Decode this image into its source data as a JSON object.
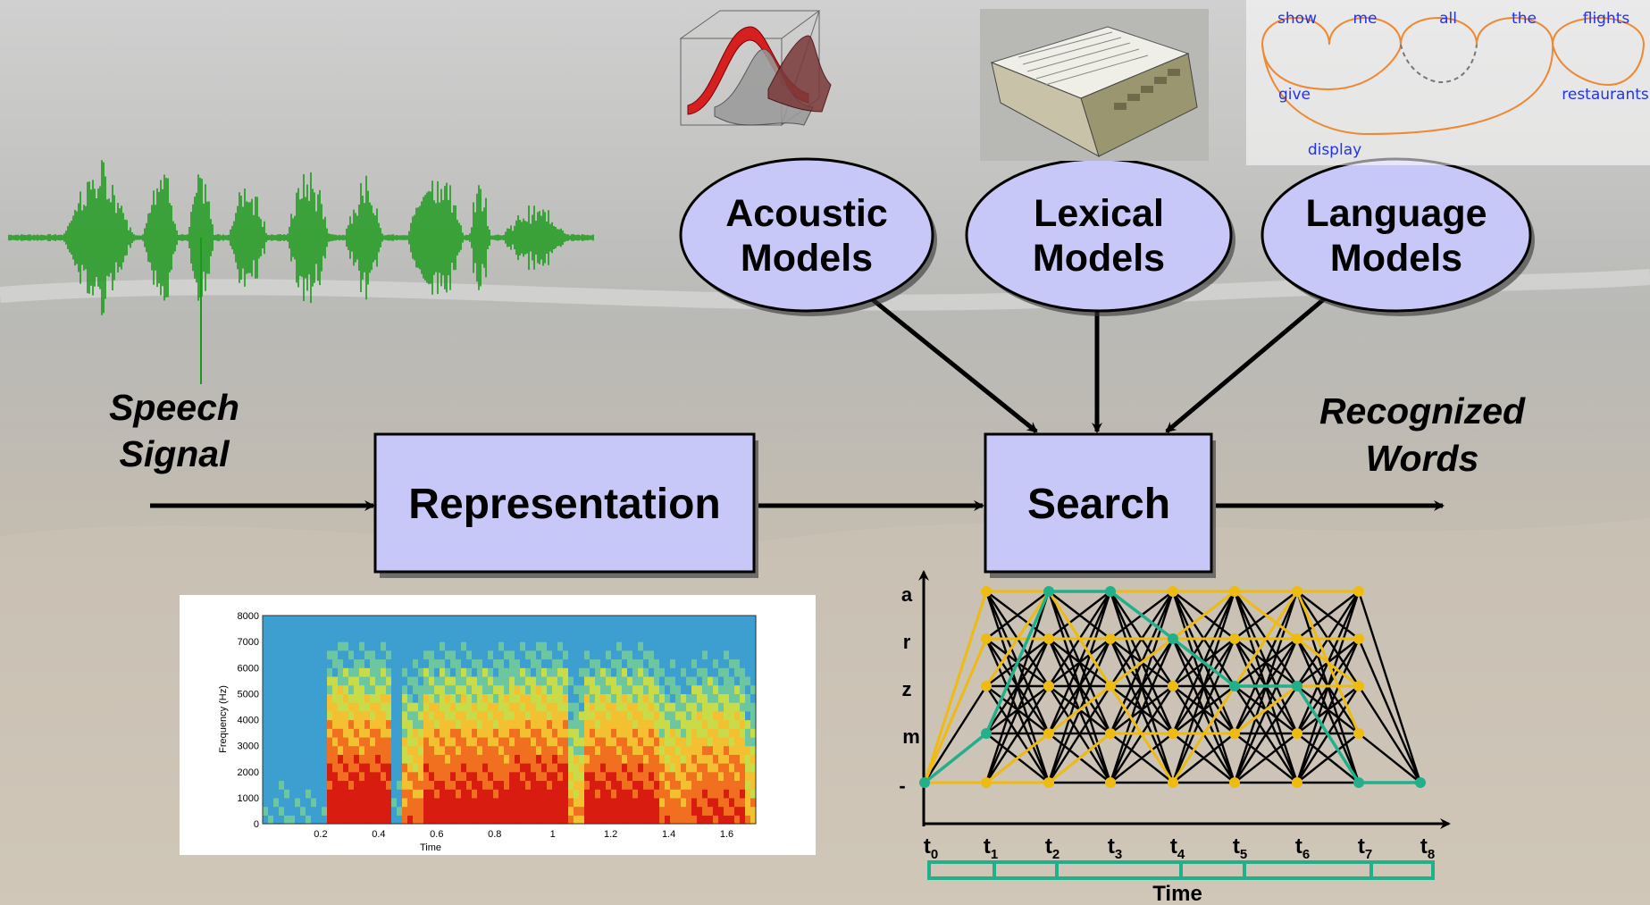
{
  "speech_label": [
    "Speech",
    "Signal"
  ],
  "recognized_label": [
    "Recognized",
    "Words"
  ],
  "representation_label": "Representation",
  "search_label": "Search",
  "models": [
    {
      "line1": "Acoustic",
      "line2": "Models"
    },
    {
      "line1": "Lexical",
      "line2": "Models"
    },
    {
      "line1": "Language",
      "line2": "Models"
    }
  ],
  "language_model_words": {
    "top": [
      "show",
      "me",
      "all",
      "the",
      "flights"
    ],
    "give": "give",
    "display": "display",
    "restaurants": "restaurants"
  },
  "spectrogram": {
    "ylabel": "Frequency (Hz)",
    "xlabel": "Time",
    "yticks": [
      "8000",
      "7000",
      "6000",
      "5000",
      "4000",
      "3000",
      "2000",
      "1000",
      "0"
    ],
    "xticks": [
      "0.2",
      "0.4",
      "0.6",
      "0.8",
      "1",
      "1.2",
      "1.4",
      "1.6"
    ]
  },
  "lattice": {
    "states": [
      "a",
      "r",
      "z",
      "m",
      "-"
    ],
    "times": [
      "t0",
      "t1",
      "t2",
      "t3",
      "t4",
      "t5",
      "t6",
      "t7",
      "t8"
    ],
    "time_base": "t",
    "time_subs": [
      "0",
      "1",
      "2",
      "3",
      "4",
      "5",
      "6",
      "7",
      "8"
    ],
    "time_label": "Time"
  },
  "colors": {
    "box_fill": "#c8c8f8",
    "waveform": "#1a9a1a",
    "path_teal": "#22b08a",
    "path_yellow": "#eebb11",
    "lm_arc": "#ee8833"
  }
}
